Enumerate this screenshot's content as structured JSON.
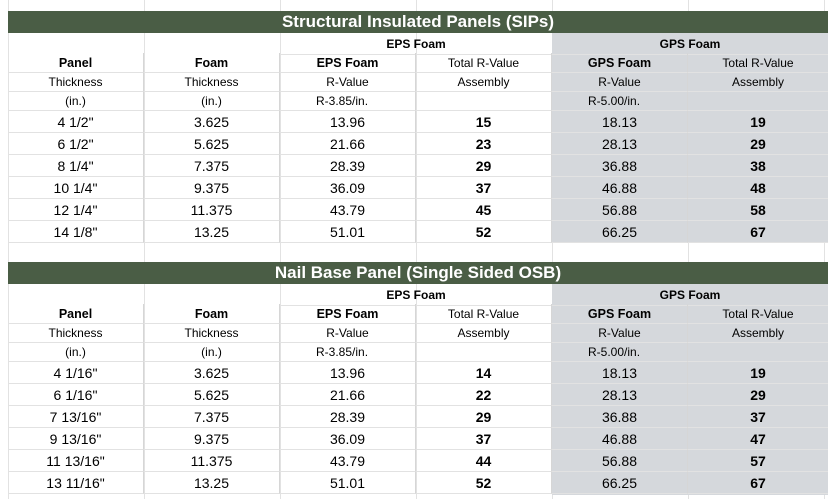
{
  "sips": {
    "title": "Structural Insulated Panels (SIPs)",
    "eps_group": "EPS Foam",
    "gps_group": "GPS Foam",
    "header_row1": [
      "Panel",
      "Foam",
      "EPS Foam",
      "Total R-Value",
      "GPS Foam",
      "Total R-Value"
    ],
    "header_row2": [
      "Thickness",
      "Thickness",
      "R-Value",
      "Assembly",
      "R-Value",
      "Assembly"
    ],
    "header_row3": [
      "(in.)",
      "(in.)",
      "R-3.85/in.",
      "",
      "R-5.00/in.",
      ""
    ],
    "rows": [
      [
        "4 1/2\"",
        "3.625",
        "13.96",
        "15",
        "18.13",
        "19"
      ],
      [
        "6 1/2\"",
        "5.625",
        "21.66",
        "23",
        "28.13",
        "29"
      ],
      [
        "8 1/4\"",
        "7.375",
        "28.39",
        "29",
        "36.88",
        "38"
      ],
      [
        "10 1/4\"",
        "9.375",
        "36.09",
        "37",
        "46.88",
        "48"
      ],
      [
        "12 1/4\"",
        "11.375",
        "43.79",
        "45",
        "56.88",
        "58"
      ],
      [
        "14 1/8\"",
        "13.25",
        "51.01",
        "52",
        "66.25",
        "67"
      ]
    ]
  },
  "nailbase": {
    "title": "Nail Base Panel (Single Sided OSB)",
    "eps_group": "EPS Foam",
    "gps_group": "GPS Foam",
    "header_row1": [
      "Panel",
      "Foam",
      "EPS Foam",
      "Total R-Value",
      "GPS Foam",
      "Total R-Value"
    ],
    "header_row2": [
      "Thickness",
      "Thickness",
      "R-Value",
      "Assembly",
      "R-Value",
      "Assembly"
    ],
    "header_row3": [
      "(in.)",
      "(in.)",
      "R-3.85/in.",
      "",
      "R-5.00/in.",
      ""
    ],
    "rows": [
      [
        "4 1/16\"",
        "3.625",
        "13.96",
        "14",
        "18.13",
        "19"
      ],
      [
        "6 1/16\"",
        "5.625",
        "21.66",
        "22",
        "28.13",
        "29"
      ],
      [
        "7 13/16\"",
        "7.375",
        "28.39",
        "29",
        "36.88",
        "37"
      ],
      [
        "9 13/16\"",
        "9.375",
        "36.09",
        "37",
        "46.88",
        "47"
      ],
      [
        "11 13/16\"",
        "11.375",
        "43.79",
        "44",
        "56.88",
        "57"
      ],
      [
        "13 11/16\"",
        "13.25",
        "51.01",
        "52",
        "66.25",
        "67"
      ]
    ]
  },
  "colors": {
    "title_bar": "#4a5d45",
    "gps_shade": "#d5d8dc"
  }
}
